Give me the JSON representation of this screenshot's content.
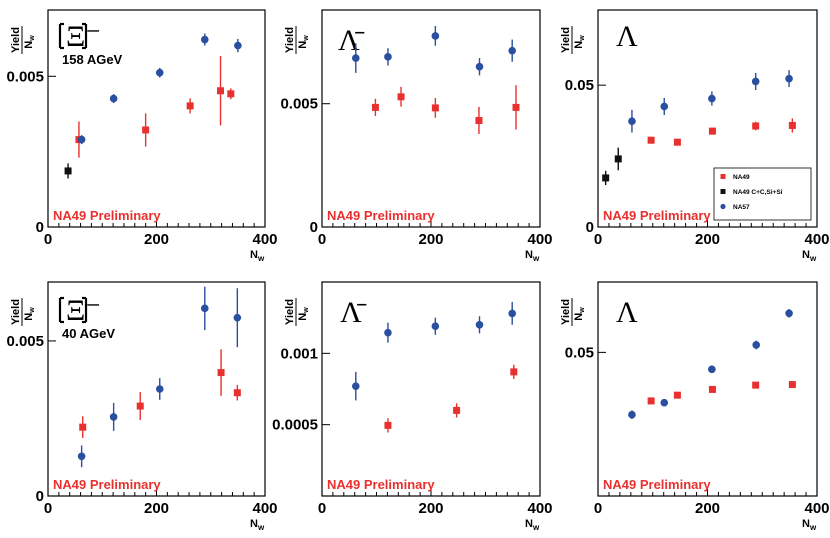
{
  "figure": {
    "label_preliminary": "NA49 Preliminary",
    "colors": {
      "NA49": "#e8312f",
      "NA49 C+C,Si+Si": "#111111",
      "NA57": "#2a4ea0"
    },
    "legend": [
      "NA49",
      "NA49 C+C,Si+Si",
      "NA57"
    ]
  },
  "chart_data": [
    {
      "type": "scatter",
      "title": "Ξ⁻",
      "subtitle": "158 AGeV",
      "xlabel": "Nw",
      "ylabel": "Yield/Nw",
      "xlim": [
        0,
        400
      ],
      "ylim": [
        0,
        0.0072
      ],
      "x_ticks": [
        "0",
        "200",
        "400"
      ],
      "y_ticks": [
        {
          "value": 0,
          "label": "0"
        },
        {
          "value": 0.005,
          "label": "0.005"
        }
      ],
      "series": [
        {
          "name": "NA49",
          "marker": "square",
          "points": [
            {
              "x": 57,
              "y": 0.0029,
              "err": 0.0006
            },
            {
              "x": 180,
              "y": 0.00322,
              "err": 0.00055
            },
            {
              "x": 262,
              "y": 0.00402,
              "err": 0.00025
            },
            {
              "x": 318,
              "y": 0.00452,
              "err": 0.00115
            },
            {
              "x": 337,
              "y": 0.00442,
              "err": 0.00018
            }
          ]
        },
        {
          "name": "NA49 C+C,Si+Si",
          "marker": "square",
          "points": [
            {
              "x": 37,
              "y": 0.00186,
              "err": 0.00025
            }
          ]
        },
        {
          "name": "NA57",
          "marker": "circle",
          "points": [
            {
              "x": 62,
              "y": 0.0029,
              "err": 0.00015
            },
            {
              "x": 121,
              "y": 0.00426,
              "err": 0.00015
            },
            {
              "x": 206,
              "y": 0.00512,
              "err": 0.00016
            },
            {
              "x": 289,
              "y": 0.00622,
              "err": 0.0002
            },
            {
              "x": 350,
              "y": 0.00602,
              "err": 0.00022
            }
          ]
        }
      ]
    },
    {
      "type": "scatter",
      "title": "Λ̄",
      "xlabel": "Nw",
      "ylabel": "Yield/Nw",
      "xlim": [
        0,
        400
      ],
      "ylim": [
        0,
        0.0088
      ],
      "x_ticks": [
        "0",
        "200",
        "400"
      ],
      "y_ticks": [
        {
          "value": 0,
          "label": "0"
        },
        {
          "value": 0.005,
          "label": "0.005"
        }
      ],
      "series": [
        {
          "name": "NA49",
          "marker": "square",
          "points": [
            {
              "x": 98,
              "y": 0.00485,
              "err": 0.00035
            },
            {
              "x": 145,
              "y": 0.00528,
              "err": 0.0004
            },
            {
              "x": 208,
              "y": 0.00483,
              "err": 0.0004
            },
            {
              "x": 288,
              "y": 0.00432,
              "err": 0.00055
            },
            {
              "x": 356,
              "y": 0.00485,
              "err": 0.0009
            }
          ]
        },
        {
          "name": "NA57",
          "marker": "circle",
          "points": [
            {
              "x": 62,
              "y": 0.00685,
              "err": 0.0006
            },
            {
              "x": 121,
              "y": 0.0069,
              "err": 0.00035
            },
            {
              "x": 208,
              "y": 0.00775,
              "err": 0.0004
            },
            {
              "x": 289,
              "y": 0.0065,
              "err": 0.00035
            },
            {
              "x": 349,
              "y": 0.00715,
              "err": 0.00045
            }
          ]
        }
      ]
    },
    {
      "type": "scatter",
      "title": "Λ",
      "xlabel": "Nw",
      "ylabel": "Yield/Nw",
      "xlim": [
        0,
        400
      ],
      "ylim": [
        0,
        0.0765
      ],
      "x_ticks": [
        "0",
        "200",
        "400"
      ],
      "y_ticks": [
        {
          "value": 0,
          "label": "0"
        },
        {
          "value": 0.05,
          "label": "0.05"
        }
      ],
      "legend_position": "right",
      "series": [
        {
          "name": "NA49",
          "marker": "square",
          "points": [
            {
              "x": 97,
              "y": 0.0306,
              "err": 0.0012
            },
            {
              "x": 145,
              "y": 0.0299,
              "err": 0.0012
            },
            {
              "x": 209,
              "y": 0.0338,
              "err": 0.0012
            },
            {
              "x": 288,
              "y": 0.0356,
              "err": 0.0015
            },
            {
              "x": 355,
              "y": 0.0358,
              "err": 0.0025
            }
          ]
        },
        {
          "name": "NA49 C+C,Si+Si",
          "marker": "square",
          "points": [
            {
              "x": 14,
              "y": 0.0173,
              "err": 0.0025
            },
            {
              "x": 37,
              "y": 0.024,
              "err": 0.004
            }
          ]
        },
        {
          "name": "NA57",
          "marker": "circle",
          "points": [
            {
              "x": 62,
              "y": 0.0373,
              "err": 0.004
            },
            {
              "x": 121,
              "y": 0.0425,
              "err": 0.003
            },
            {
              "x": 208,
              "y": 0.0453,
              "err": 0.0025
            },
            {
              "x": 288,
              "y": 0.0513,
              "err": 0.003
            },
            {
              "x": 349,
              "y": 0.0523,
              "err": 0.003
            }
          ]
        }
      ]
    },
    {
      "type": "scatter",
      "title": "Ξ⁻",
      "subtitle": "40 AGeV",
      "xlabel": "Nw",
      "ylabel": "Yield/Nw",
      "xlim": [
        0,
        400
      ],
      "ylim": [
        0,
        0.0069
      ],
      "x_ticks": [
        "0",
        "200",
        "400"
      ],
      "y_ticks": [
        {
          "value": 0,
          "label": "0"
        },
        {
          "value": 0.005,
          "label": "0.005"
        }
      ],
      "series": [
        {
          "name": "NA49",
          "marker": "square",
          "points": [
            {
              "x": 64,
              "y": 0.00222,
              "err": 0.00035
            },
            {
              "x": 170,
              "y": 0.0029,
              "err": 0.00045
            },
            {
              "x": 319,
              "y": 0.00398,
              "err": 0.00075
            },
            {
              "x": 349,
              "y": 0.00333,
              "err": 0.00025
            }
          ]
        },
        {
          "name": "NA57",
          "marker": "circle",
          "points": [
            {
              "x": 62,
              "y": 0.00128,
              "err": 0.00035
            },
            {
              "x": 121,
              "y": 0.00255,
              "err": 0.00045
            },
            {
              "x": 206,
              "y": 0.00345,
              "err": 0.00035
            },
            {
              "x": 289,
              "y": 0.00605,
              "err": 0.0007
            },
            {
              "x": 349,
              "y": 0.00575,
              "err": 0.00095
            }
          ]
        }
      ]
    },
    {
      "type": "scatter",
      "title": "Λ̄",
      "xlabel": "Nw",
      "ylabel": "Yield/Nw",
      "xlim": [
        0,
        400
      ],
      "ylim": [
        0,
        0.0015
      ],
      "x_ticks": [
        "0",
        "200",
        "400"
      ],
      "y_ticks": [
        {
          "value": 0.0005,
          "label": "0.0005"
        },
        {
          "value": 0.001,
          "label": "0.001"
        }
      ],
      "series": [
        {
          "name": "NA49",
          "marker": "square",
          "points": [
            {
              "x": 121,
              "y": 0.000495,
              "err": 5e-05
            },
            {
              "x": 247,
              "y": 0.0006,
              "err": 5e-05
            },
            {
              "x": 352,
              "y": 0.00087,
              "err": 5e-05
            }
          ]
        },
        {
          "name": "NA57",
          "marker": "circle",
          "points": [
            {
              "x": 62,
              "y": 0.00077,
              "err": 0.0001
            },
            {
              "x": 121,
              "y": 0.001145,
              "err": 7e-05
            },
            {
              "x": 208,
              "y": 0.00119,
              "err": 6e-05
            },
            {
              "x": 289,
              "y": 0.0012,
              "err": 6e-05
            },
            {
              "x": 349,
              "y": 0.00128,
              "err": 8e-05
            }
          ]
        }
      ]
    },
    {
      "type": "scatter",
      "title": "Λ",
      "xlabel": "Nw",
      "ylabel": "Yield/Nw",
      "xlim": [
        0,
        400
      ],
      "ylim": [
        0,
        0.0745
      ],
      "x_ticks": [
        "0",
        "200",
        "400"
      ],
      "y_ticks": [
        {
          "value": 0.05,
          "label": "0.05"
        }
      ],
      "series": [
        {
          "name": "NA49",
          "marker": "square",
          "points": [
            {
              "x": 97,
              "y": 0.0331,
              "err": 0.0008
            },
            {
              "x": 145,
              "y": 0.0351,
              "err": 0.0008
            },
            {
              "x": 209,
              "y": 0.0371,
              "err": 0.0008
            },
            {
              "x": 288,
              "y": 0.0386,
              "err": 0.0008
            },
            {
              "x": 355,
              "y": 0.0388,
              "err": 0.0008
            }
          ]
        },
        {
          "name": "NA57",
          "marker": "circle",
          "points": [
            {
              "x": 62,
              "y": 0.0283,
              "err": 0.0015
            },
            {
              "x": 121,
              "y": 0.0325,
              "err": 0.001
            },
            {
              "x": 208,
              "y": 0.0441,
              "err": 0.0013
            },
            {
              "x": 289,
              "y": 0.0526,
              "err": 0.0015
            },
            {
              "x": 349,
              "y": 0.0636,
              "err": 0.0015
            }
          ]
        }
      ]
    }
  ]
}
